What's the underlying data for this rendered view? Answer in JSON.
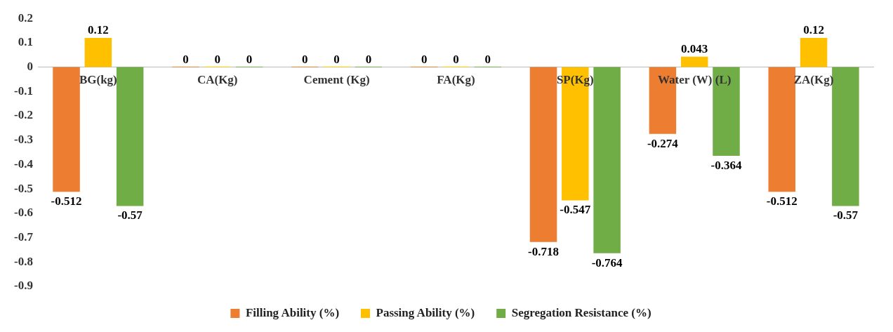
{
  "chart_data": {
    "type": "bar",
    "categories": [
      "BG(kg)",
      "CA(Kg)",
      "Cement (Kg)",
      "FA(Kg)",
      "SP(Kg)",
      "Water (W) (L)",
      "ZA(Kg)"
    ],
    "series": [
      {
        "name": "Filling Ability (%)",
        "color": "#ed7d31",
        "values": [
          -0.512,
          0,
          0,
          0,
          -0.718,
          -0.274,
          -0.512
        ]
      },
      {
        "name": "Passing Ability (%)",
        "color": "#ffc000",
        "values": [
          0.12,
          0,
          0,
          0,
          -0.547,
          0.043,
          0.12
        ]
      },
      {
        "name": "Segregation Resistance (%)",
        "color": "#70ad47",
        "values": [
          -0.57,
          0,
          0,
          0,
          -0.764,
          -0.364,
          -0.57
        ]
      }
    ],
    "ylim": [
      -0.9,
      0.2
    ],
    "yticks": [
      0.2,
      0.1,
      0,
      -0.1,
      -0.2,
      -0.3,
      -0.4,
      -0.5,
      -0.6,
      -0.7,
      -0.8,
      -0.9
    ],
    "grid": false,
    "legend": "bottom",
    "data_labels": true
  }
}
